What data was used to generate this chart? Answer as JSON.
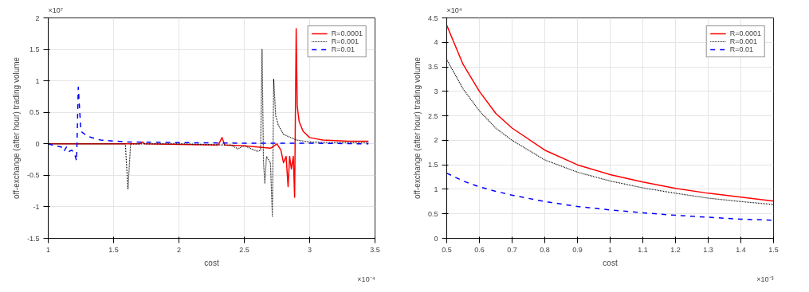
{
  "chart_data": [
    {
      "type": "line",
      "xlabel": "cost",
      "ylabel": "off-exchange (after hour) trading volume",
      "annotations": [
        "×10⁷",
        "×10⁻⁴"
      ],
      "xlim": [
        1,
        3.5
      ],
      "xticks": [
        1,
        1.5,
        2,
        2.5,
        3,
        3.5
      ],
      "ylim": [
        -1.5,
        2
      ],
      "yticks": [
        -1.5,
        -1,
        -0.5,
        0,
        0.5,
        1,
        1.5,
        2
      ],
      "grid": true,
      "legend": "top right",
      "series": [
        {
          "name": "R=0.0001",
          "color": "#ff0000",
          "line_style": "solid",
          "x": [
            1,
            1.5,
            1.7,
            1.72,
            1.74,
            2.0,
            2.3,
            2.33,
            2.35,
            2.5,
            2.6,
            2.7,
            2.75,
            2.78,
            2.8,
            2.82,
            2.835,
            2.847,
            2.86,
            2.875,
            2.885,
            2.897,
            2.905,
            2.92,
            2.95,
            3.0,
            3.1,
            3.2,
            3.3,
            3.45
          ],
          "values": [
            0,
            0,
            0,
            0.03,
            0,
            -0.01,
            -0.02,
            0.1,
            -0.02,
            -0.03,
            -0.05,
            -0.07,
            0,
            -0.1,
            -0.3,
            -0.2,
            -0.68,
            -0.2,
            -0.4,
            -0.2,
            -0.85,
            1.83,
            0.6,
            0.35,
            0.2,
            0.1,
            0.06,
            0.05,
            0.04,
            0.04
          ]
        },
        {
          "name": "R=0.001",
          "color": "#000000",
          "line_style": "dotted",
          "x": [
            1,
            1.59,
            1.61,
            1.63,
            2.0,
            2.4,
            2.45,
            2.5,
            2.6,
            2.625,
            2.636,
            2.647,
            2.657,
            2.67,
            2.7,
            2.715,
            2.725,
            2.74,
            2.76,
            2.8,
            2.9,
            3.0,
            3.2,
            3.45
          ],
          "values": [
            0,
            0,
            -0.72,
            0,
            0,
            -0.02,
            -0.08,
            -0.03,
            -0.12,
            -0.1,
            1.5,
            -0.3,
            -0.62,
            -0.2,
            -0.3,
            -1.15,
            1.03,
            0.45,
            0.3,
            0.15,
            0.06,
            0.03,
            0.02,
            0.02
          ]
        },
        {
          "name": "R=0.01",
          "color": "#0000ff",
          "line_style": "dashed",
          "x": [
            1,
            1.05,
            1.1,
            1.12,
            1.14,
            1.16,
            1.18,
            1.2,
            1.217,
            1.23,
            1.25,
            1.3,
            1.4,
            1.6,
            2.0,
            2.5,
            3.0,
            3.45
          ],
          "values": [
            0,
            -0.03,
            -0.05,
            -0.12,
            -0.05,
            -0.12,
            -0.1,
            -0.15,
            -0.27,
            0.9,
            0.2,
            0.12,
            0.06,
            0.03,
            0.02,
            0.01,
            0.01,
            0
          ]
        }
      ]
    },
    {
      "type": "line",
      "xlabel": "cost",
      "ylabel": "off-exchange (after hour) trading volume",
      "annotations": [
        "×10⁴",
        "×10⁻³"
      ],
      "xlim": [
        0.5,
        1.5
      ],
      "xticks": [
        0.5,
        0.6,
        0.7,
        0.8,
        0.9,
        1,
        1.1,
        1.2,
        1.3,
        1.4,
        1.5
      ],
      "ylim": [
        0,
        4.5
      ],
      "yticks": [
        0,
        0.5,
        1,
        1.5,
        2,
        2.5,
        3,
        3.5,
        4,
        4.5
      ],
      "grid": true,
      "legend": "top right",
      "x": [
        0.5,
        0.55,
        0.6,
        0.65,
        0.7,
        0.8,
        0.9,
        1.0,
        1.1,
        1.2,
        1.3,
        1.4,
        1.5
      ],
      "series": [
        {
          "name": "R=0.0001",
          "color": "#ff0000",
          "line_style": "solid",
          "values": [
            4.35,
            3.55,
            3.0,
            2.55,
            2.25,
            1.8,
            1.5,
            1.3,
            1.15,
            1.02,
            0.92,
            0.84,
            0.76
          ]
        },
        {
          "name": "R=0.001",
          "color": "#000000",
          "line_style": "dotted",
          "values": [
            3.65,
            3.05,
            2.6,
            2.25,
            2.0,
            1.6,
            1.35,
            1.17,
            1.03,
            0.92,
            0.82,
            0.75,
            0.69
          ]
        },
        {
          "name": "R=0.01",
          "color": "#0000ff",
          "line_style": "dashed",
          "values": [
            1.33,
            1.17,
            1.05,
            0.96,
            0.88,
            0.75,
            0.65,
            0.58,
            0.52,
            0.47,
            0.43,
            0.39,
            0.37
          ]
        }
      ]
    }
  ]
}
